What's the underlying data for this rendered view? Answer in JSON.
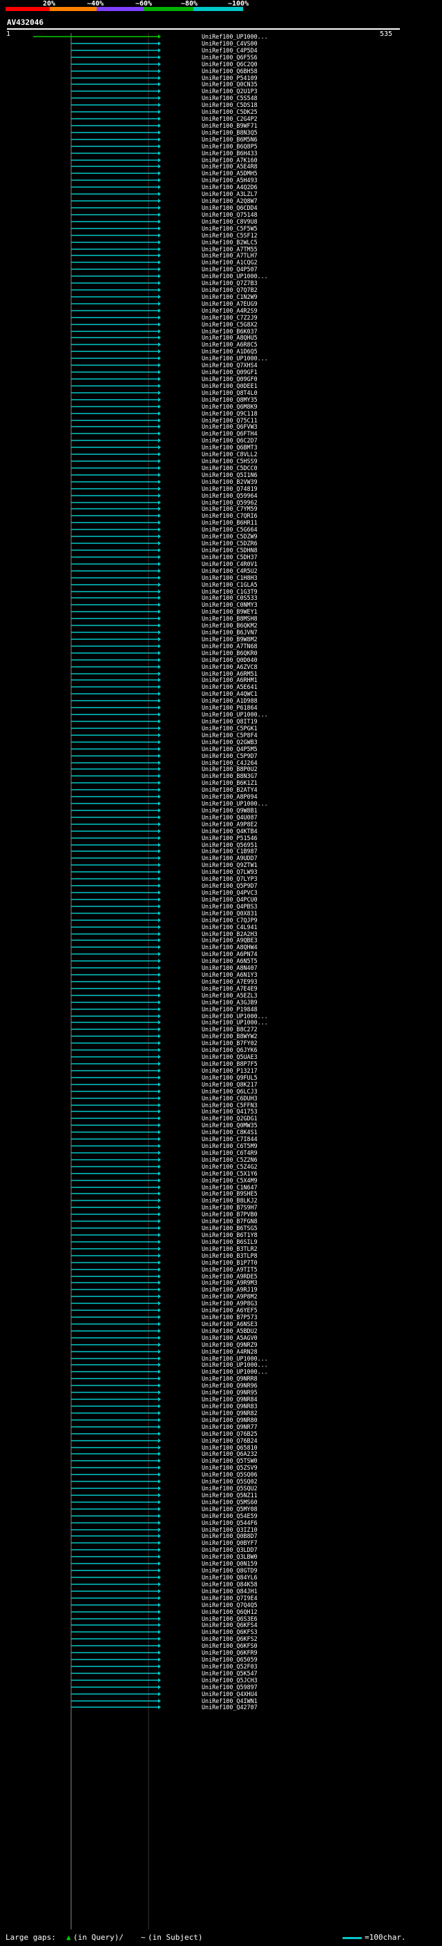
{
  "scale": {
    "labels": [
      "20%",
      "~40%",
      "~60%",
      "~80%",
      "~100%"
    ],
    "colors": [
      "#ff0000",
      "#ff8000",
      "#8040ff",
      "#00b000",
      "#00c8c8"
    ]
  },
  "query": {
    "name": "AV432046",
    "start": "1",
    "end": "535"
  },
  "colors": {
    "cyan": "#00c8c8",
    "green": "#00cc00",
    "magenta": "#ff00ff",
    "gray": "#888888"
  },
  "hits": [
    "UniRef100_UP1000...",
    "UniRef100_C4VS00",
    "UniRef100_C4P5D4",
    "UniRef100_Q6F5S6",
    "UniRef100_Q6C2Q0",
    "UniRef100_Q6BH58",
    "UniRef100_P54109",
    "UniRef100_Q0CN35",
    "UniRef100_Q2U1P3",
    "UniRef100_C5S548",
    "UniRef100_C5DS18",
    "UniRef100_C5DK25",
    "UniRef100_C2G4P2",
    "UniRef100_B9WF71",
    "UniRef100_B8N3Q5",
    "UniRef100_B6M5N6",
    "UniRef100_B6Q8P5",
    "UniRef100_B6H433",
    "UniRef100_A7K160",
    "UniRef100_A5E4R8",
    "UniRef100_A5DMH5",
    "UniRef100_A5H493",
    "UniRef100_A4Q2D6",
    "UniRef100_A3LZL7",
    "UniRef100_A2Q8W7",
    "UniRef100_Q6CDD4",
    "UniRef100_Q75148",
    "UniRef100_C8V9U8",
    "UniRef100_C5F5W5",
    "UniRef100_C5SF12",
    "UniRef100_B2WLC5",
    "UniRef100_A7TM55",
    "UniRef100_A7TLH7",
    "UniRef100_A1CQG2",
    "UniRef100_Q4P507",
    "UniRef100_UP1000...",
    "UniRef100_Q7Z7B3",
    "UniRef100_Q7Q7B2",
    "UniRef100_C1N2W9",
    "UniRef100_A7EUG9",
    "UniRef100_A4R2S9",
    "UniRef100_C7Z2J9",
    "UniRef100_C5G8X2",
    "UniRef100_B6K037",
    "UniRef100_A8QHU5",
    "UniRef100_A6R8C5",
    "UniRef100_A1D6Q5",
    "UniRef100_UP1000...",
    "UniRef100_Q7XHS4",
    "UniRef100_Q09GF1",
    "UniRef100_Q09GF0",
    "UniRef100_Q0DEE1",
    "UniRef100_Q8T4L0",
    "UniRef100_Q8MY35",
    "UniRef100_Q6M8K9",
    "UniRef100_Q9C118",
    "UniRef100_Q75C11",
    "UniRef100_Q6FVW3",
    "UniRef100_Q6FTH4",
    "UniRef100_Q6C2D7",
    "UniRef100_Q6BMT3",
    "UniRef100_C8VLL2",
    "UniRef100_C5HSS9",
    "UniRef100_C5DCC0",
    "UniRef100_Q5I1N6",
    "UniRef100_B2VW39",
    "UniRef100_Q74819",
    "UniRef100_Q59964",
    "UniRef100_Q59962",
    "UniRef100_C7YM59",
    "UniRef100_C7QRI6",
    "UniRef100_B6HR11",
    "UniRef100_C5G664",
    "UniRef100_C5DZW9",
    "UniRef100_C5DZR6",
    "UniRef100_C5DHN8",
    "UniRef100_C5DH37",
    "UniRef100_C4R0V1",
    "UniRef100_C4R5U2",
    "UniRef100_C1H8H3",
    "UniRef100_C1GLA5",
    "UniRef100_C1G3T9",
    "UniRef100_C0S533",
    "UniRef100_C0NMY3",
    "UniRef100_B9WEY1",
    "UniRef100_B8MSH8",
    "UniRef100_B6QKM2",
    "UniRef100_B6JVN7",
    "UniRef100_B9W8M2",
    "UniRef100_A7TN68",
    "UniRef100_B6QKR0",
    "UniRef100_Q0D040",
    "UniRef100_A6ZVC8",
    "UniRef100_A6RM51",
    "UniRef100_A6RHM1",
    "UniRef100_A5E641",
    "UniRef100_A4QWC1",
    "UniRef100_A1D988",
    "UniRef100_P61864",
    "UniRef100_UP1000...",
    "UniRef100_Q8IT19",
    "UniRef100_C5PGK1",
    "UniRef100_C5P8F4",
    "UniRef100_Q2GWB3",
    "UniRef100_Q4P5M5",
    "UniRef100_C5P9D7",
    "UniRef100_C4J264",
    "UniRef100_B8P0U2",
    "UniRef100_B8N3G7",
    "UniRef100_B6K1Z1",
    "UniRef100_B2ATY4",
    "UniRef100_A8P094",
    "UniRef100_UP1000...",
    "UniRef100_Q9W8B1",
    "UniRef100_Q4U087",
    "UniRef100_A9P8E2",
    "UniRef100_Q4KTB4",
    "UniRef100_P51546",
    "UniRef100_Q56951",
    "UniRef100_C1B987",
    "UniRef100_A9UDD7",
    "UniRef100_Q9ZTW1",
    "UniRef100_Q7LW93",
    "UniRef100_Q7LYP3",
    "UniRef100_Q5P9D7",
    "UniRef100_Q4PVC3",
    "UniRef100_Q4PCU0",
    "UniRef100_Q4PBS3",
    "UniRef100_Q0X831",
    "UniRef100_C7QJP9",
    "UniRef100_C4L941",
    "UniRef100_B2A2H3",
    "UniRef100_A9QBE3",
    "UniRef100_A8QHW4",
    "UniRef100_A6PN74",
    "UniRef100_A6N5T5",
    "UniRef100_A8N407",
    "UniRef100_A6N1Y3",
    "UniRef100_A7E993",
    "UniRef100_A7E4E9",
    "UniRef100_A5EZL3",
    "UniRef100_A3GJB9",
    "UniRef100_P19848",
    "UniRef100_UP1000...",
    "UniRef100_UP1000...",
    "UniRef100_B8C272",
    "UniRef100_B8WYW2",
    "UniRef100_B7FY02",
    "UniRef100_Q6JYK6",
    "UniRef100_Q5UAE3",
    "UniRef100_B8P7F5",
    "UniRef100_P13217",
    "UniRef100_Q9FUL5",
    "UniRef100_Q8K217",
    "UniRef100_Q6LCJ3",
    "UniRef100_C6DUH3",
    "UniRef100_C5FFN3",
    "UniRef100_Q41753",
    "UniRef100_Q2GDG1",
    "UniRef100_Q0MW35",
    "UniRef100_C8K4S1",
    "UniRef100_C7I844",
    "UniRef100_C6T5M9",
    "UniRef100_C6T4R9",
    "UniRef100_C5Z2N6",
    "UniRef100_C5Z4G2",
    "UniRef100_C5X1Y6",
    "UniRef100_C5X4M9",
    "UniRef100_C1N647",
    "UniRef100_B9SHE5",
    "UniRef100_B8LKJ2",
    "UniRef100_B7S9H7",
    "UniRef100_B7PVB0",
    "UniRef100_B7FGN8",
    "UniRef100_B6TSG5",
    "UniRef100_B6T1Y8",
    "UniRef100_B6SIL9",
    "UniRef100_B3TLR2",
    "UniRef100_B3TLP8",
    "UniRef100_B1P7T0",
    "UniRef100_A9TIT5",
    "UniRef100_A9RDE5",
    "UniRef100_A9R9M3",
    "UniRef100_A9RJ19",
    "UniRef100_A9P8M2",
    "UniRef100_A9P8G3",
    "UniRef100_A6YEF5",
    "UniRef100_B7P573",
    "UniRef100_A6NSE3",
    "UniRef100_A5BDU2",
    "UniRef100_A5AGV0",
    "UniRef100_Q9NRZ9",
    "UniRef100_A4RN28",
    "UniRef100_UP1000...",
    "UniRef100_UP1000...",
    "UniRef100_UP1000...",
    "UniRef100_Q9NRR8",
    "UniRef100_Q9NR96",
    "UniRef100_Q9NR95",
    "UniRef100_Q9NR84",
    "UniRef100_Q9NR83",
    "UniRef100_Q9NR82",
    "UniRef100_Q9NR80",
    "UniRef100_Q9NR77",
    "UniRef100_Q76B25",
    "UniRef100_Q76B24",
    "UniRef100_Q65810",
    "UniRef100_Q6A232",
    "UniRef100_Q5TSW0",
    "UniRef100_Q5ZSV9",
    "UniRef100_Q5SQ06",
    "UniRef100_Q5SQ02",
    "UniRef100_Q5SQU2",
    "UniRef100_Q5NZ11",
    "UniRef100_Q5MS60",
    "UniRef100_Q5MY08",
    "UniRef100_Q54E59",
    "UniRef100_Q544F6",
    "UniRef100_Q3IZ10",
    "UniRef100_Q0B8D7",
    "UniRef100_Q0BYF7",
    "UniRef100_Q3LDD7",
    "UniRef100_Q3LBW0",
    "UniRef100_Q0N159",
    "UniRef100_Q8GTD9",
    "UniRef100_Q84YL6",
    "UniRef100_Q84K58",
    "UniRef100_Q84JH1",
    "UniRef100_Q7I9E4",
    "UniRef100_Q7Q4Q5",
    "UniRef100_Q6QH12",
    "UniRef100_Q6S3E6",
    "UniRef100_Q6KFS4",
    "UniRef100_Q6KFS3",
    "UniRef100_Q6KFS2",
    "UniRef100_Q6KFS0",
    "UniRef100_Q6KFR9",
    "UniRef100_Q65059",
    "UniRef100_Q52F03",
    "UniRef100_Q5K547",
    "UniRef100_Q5JCH3",
    "UniRef100_Q59897",
    "UniRef100_Q4XHU4",
    "UniRef100_Q4IWN1",
    "UniRef100_Q42707"
  ],
  "legend": {
    "large_gaps_label": "Large gaps:",
    "query_gap_glyph": "▲",
    "query_gap_text": "(in Query)/",
    "subject_gap_glyph": "~",
    "subject_gap_text": "(in Subject)",
    "scale_text": "=100char."
  }
}
